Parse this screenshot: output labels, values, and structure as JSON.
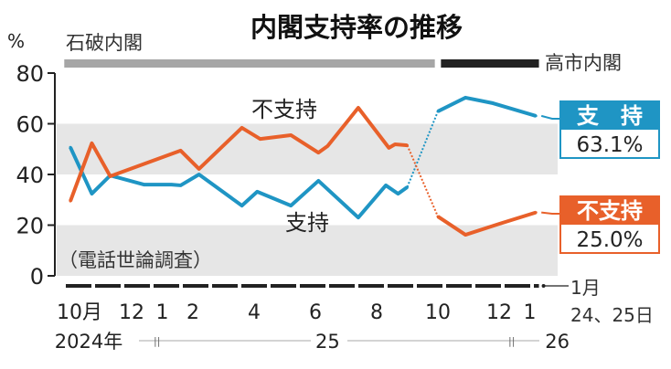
{
  "chart_data": {
    "type": "line",
    "title": "内閣支持率の推移",
    "ylabel": "%",
    "ylim": [
      0,
      80
    ],
    "yticks": [
      0,
      20,
      40,
      60,
      80
    ],
    "x_unit": "months since Oct 2024",
    "note": "（電話世論調査）",
    "cabinets": [
      {
        "name": "石破内閣",
        "color": "#a6a6a6",
        "x_range": [
          -0.2,
          11.9
        ]
      },
      {
        "name": "高市内閣",
        "color": "#222222",
        "x_range": [
          12.1,
          15.3
        ]
      }
    ],
    "x_tick_labels": [
      {
        "x": 0,
        "label": "10月"
      },
      {
        "x": 2,
        "label": "12"
      },
      {
        "x": 3,
        "label": "1"
      },
      {
        "x": 4,
        "label": "2"
      },
      {
        "x": 6,
        "label": "4"
      },
      {
        "x": 8,
        "label": "6"
      },
      {
        "x": 10,
        "label": "8"
      },
      {
        "x": 12,
        "label": "10"
      },
      {
        "x": 14,
        "label": "12"
      },
      {
        "x": 15,
        "label": "1"
      }
    ],
    "year_labels": [
      {
        "x": 0,
        "label": "2024年"
      },
      {
        "x": 8.4,
        "label": "25"
      },
      {
        "x": 15.9,
        "label": "26"
      }
    ],
    "latest_date_label": {
      "month": "1月",
      "days": "24、25日"
    },
    "series": [
      {
        "name": "支持",
        "label_display": "支　持",
        "color": "#1f95c4",
        "latest_value": "63.1%",
        "x": [
          0.0,
          0.7,
          1.3,
          2.4,
          3.3,
          3.6,
          4.2,
          5.6,
          6.1,
          7.2,
          8.1,
          9.4,
          10.3,
          10.7,
          11.0,
          12.0,
          12.9,
          13.8,
          15.2
        ],
        "values": [
          50.7,
          32.4,
          39.6,
          36.0,
          36.0,
          35.7,
          40.0,
          27.7,
          33.2,
          27.7,
          37.5,
          23.0,
          35.7,
          32.4,
          35.0,
          64.9,
          70.3,
          68.1,
          63.1
        ],
        "break_after_index": 14
      },
      {
        "name": "不支持",
        "label_display": "不支持",
        "color": "#e8602a",
        "latest_value": "25.0%",
        "x": [
          0.0,
          0.7,
          1.3,
          3.6,
          4.2,
          5.6,
          6.2,
          7.2,
          8.1,
          8.4,
          9.4,
          10.4,
          10.6,
          11.0,
          12.0,
          12.9,
          14.0,
          15.2
        ],
        "values": [
          29.5,
          52.3,
          39.3,
          49.4,
          42.2,
          58.4,
          54.0,
          55.5,
          48.6,
          51.2,
          66.3,
          50.5,
          51.9,
          51.5,
          23.4,
          16.2,
          20.5,
          25.0
        ],
        "break_after_index": 13
      }
    ]
  }
}
